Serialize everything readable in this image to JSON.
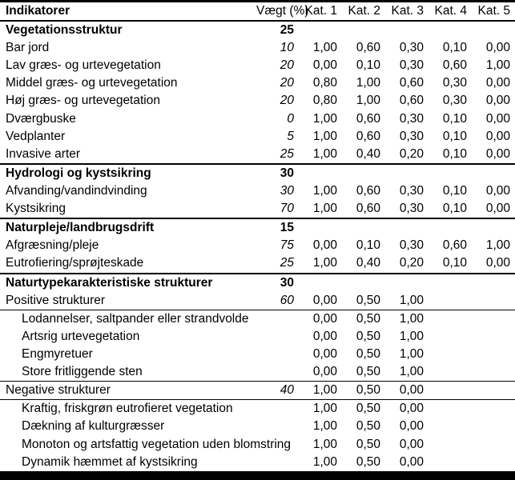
{
  "table": {
    "columns": [
      "Indikatorer",
      "Vægt (%)",
      "Kat. 1",
      "Kat. 2",
      "Kat. 3",
      "Kat. 4",
      "Kat. 5"
    ],
    "rows": [
      {
        "label": "Vegetationsstruktur",
        "weight": "25",
        "values": [
          "",
          "",
          "",
          "",
          ""
        ],
        "type": "section",
        "rule": "none"
      },
      {
        "label": "Bar jord",
        "weight": "10",
        "values": [
          "1,00",
          "0,60",
          "0,30",
          "0,10",
          "0,00"
        ],
        "type": "item",
        "rule": "none"
      },
      {
        "label": "Lav græs- og urtevegetation",
        "weight": "20",
        "values": [
          "0,00",
          "0,10",
          "0,30",
          "0,60",
          "1,00"
        ],
        "type": "item",
        "rule": "none"
      },
      {
        "label": "Middel græs- og urtevegetation",
        "weight": "20",
        "values": [
          "0,80",
          "1,00",
          "0,60",
          "0,30",
          "0,00"
        ],
        "type": "item",
        "rule": "none"
      },
      {
        "label": "Høj græs- og urtevegetation",
        "weight": "20",
        "values": [
          "0,80",
          "1,00",
          "0,60",
          "0,30",
          "0,00"
        ],
        "type": "item",
        "rule": "none"
      },
      {
        "label": "Dværgbuske",
        "weight": "0",
        "values": [
          "1,00",
          "0,60",
          "0,30",
          "0,10",
          "0,00"
        ],
        "type": "item",
        "rule": "none"
      },
      {
        "label": "Vedplanter",
        "weight": "5",
        "values": [
          "1,00",
          "0,60",
          "0,30",
          "0,10",
          "0,00"
        ],
        "type": "item",
        "rule": "none"
      },
      {
        "label": "Invasive arter",
        "weight": "25",
        "values": [
          "1,00",
          "0,40",
          "0,20",
          "0,10",
          "0,00"
        ],
        "type": "item",
        "rule": "thick"
      },
      {
        "label": "Hydrologi og kystsikring",
        "weight": "30",
        "values": [
          "",
          "",
          "",
          "",
          ""
        ],
        "type": "section",
        "rule": "none"
      },
      {
        "label": "Afvanding/vandindvinding",
        "weight": "30",
        "values": [
          "1,00",
          "0,60",
          "0,30",
          "0,10",
          "0,00"
        ],
        "type": "item",
        "rule": "none"
      },
      {
        "label": "Kystsikring",
        "weight": "70",
        "values": [
          "1,00",
          "0,60",
          "0,30",
          "0,10",
          "0,00"
        ],
        "type": "item",
        "rule": "thick"
      },
      {
        "label": "Naturpleje/landbrugsdrift",
        "weight": "15",
        "values": [
          "",
          "",
          "",
          "",
          ""
        ],
        "type": "section",
        "rule": "none"
      },
      {
        "label": "Afgræsning/pleje",
        "weight": "75",
        "values": [
          "0,00",
          "0,10",
          "0,30",
          "0,60",
          "1,00"
        ],
        "type": "item",
        "rule": "none"
      },
      {
        "label": "Eutrofiering/sprøjteskade",
        "weight": "25",
        "values": [
          "1,00",
          "0,40",
          "0,20",
          "0,10",
          "0,00"
        ],
        "type": "item",
        "rule": "thick"
      },
      {
        "label": "Naturtypekarakteristiske strukturer",
        "weight": "30",
        "values": [
          "",
          "",
          "",
          "",
          ""
        ],
        "type": "section",
        "rule": "none"
      },
      {
        "label": "Positive strukturer",
        "weight": "60",
        "values": [
          "0,00",
          "0,50",
          "1,00",
          "",
          ""
        ],
        "type": "item",
        "rule": "thin"
      },
      {
        "label": "Lodannelser, saltpander eller strandvolde",
        "weight": "",
        "values": [
          "0,00",
          "0,50",
          "1,00",
          "",
          ""
        ],
        "type": "sub",
        "rule": "none"
      },
      {
        "label": "Artsrig urtevegetation",
        "weight": "",
        "values": [
          "0,00",
          "0,50",
          "1,00",
          "",
          ""
        ],
        "type": "sub",
        "rule": "none"
      },
      {
        "label": "Engmyretuer",
        "weight": "",
        "values": [
          "0,00",
          "0,50",
          "1,00",
          "",
          ""
        ],
        "type": "sub",
        "rule": "none"
      },
      {
        "label": "Store fritliggende sten",
        "weight": "",
        "values": [
          "0,00",
          "0,50",
          "1,00",
          "",
          ""
        ],
        "type": "sub",
        "rule": "thin"
      },
      {
        "label": "Negative strukturer",
        "weight": "40",
        "values": [
          "1,00",
          "0,50",
          "0,00",
          "",
          ""
        ],
        "type": "item",
        "rule": "thin"
      },
      {
        "label": "Kraftig, friskgrøn eutrofieret vegetation",
        "weight": "",
        "values": [
          "1,00",
          "0,50",
          "0,00",
          "",
          ""
        ],
        "type": "sub",
        "rule": "none"
      },
      {
        "label": "Dækning af kulturgræsser",
        "weight": "",
        "values": [
          "1,00",
          "0,50",
          "0,00",
          "",
          ""
        ],
        "type": "sub",
        "rule": "none"
      },
      {
        "label": "Monoton og artsfattig vegetation uden blomstring",
        "weight": "",
        "values": [
          "1,00",
          "0,50",
          "0,00",
          "",
          ""
        ],
        "type": "sub",
        "rule": "none"
      },
      {
        "label": "Dynamik hæmmet af kystsikring",
        "weight": "",
        "values": [
          "1,00",
          "0,50",
          "0,00",
          "",
          ""
        ],
        "type": "sub",
        "rule": "none"
      }
    ]
  }
}
